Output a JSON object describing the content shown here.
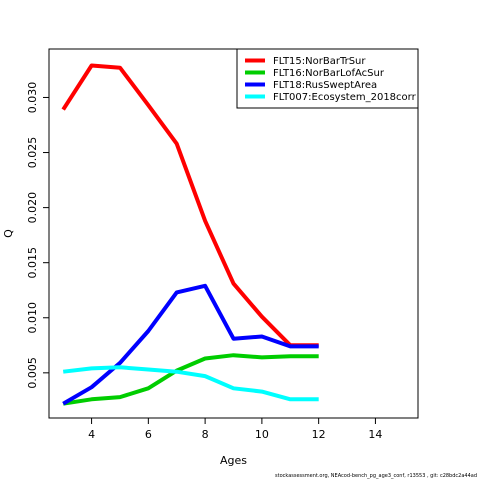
{
  "chart_data": {
    "type": "line",
    "title": "",
    "xlabel": "Ages",
    "ylabel": "Q",
    "xlim": [
      2.5,
      15.5
    ],
    "ylim": [
      0.0009,
      0.0344
    ],
    "xticks": [
      4,
      6,
      8,
      10,
      12,
      14
    ],
    "yticks": [
      0.005,
      0.01,
      0.015,
      0.02,
      0.025,
      0.03
    ],
    "ytick_labels": [
      "0.005",
      "0.010",
      "0.015",
      "0.020",
      "0.025",
      "0.030"
    ],
    "grid": false,
    "legend_position": "top-right",
    "series": [
      {
        "name": "FLT15:NorBarTrSur",
        "color": "#ff0000",
        "x": [
          3,
          4,
          5,
          6,
          7,
          8,
          9,
          10,
          11,
          12
        ],
        "y": [
          0.0289,
          0.0329,
          0.0327,
          0.0293,
          0.0258,
          0.0188,
          0.0131,
          0.0101,
          0.0075,
          0.0075
        ]
      },
      {
        "name": "FLT16:NorBarLofAcSur",
        "color": "#00cd00",
        "x": [
          3,
          4,
          5,
          6,
          7,
          8,
          9,
          10,
          11,
          12
        ],
        "y": [
          0.0022,
          0.0026,
          0.0028,
          0.0036,
          0.0052,
          0.0063,
          0.0066,
          0.0064,
          0.0065,
          0.0065
        ]
      },
      {
        "name": "FLT18:RusSweptArea",
        "color": "#0000ff",
        "x": [
          3,
          4,
          5,
          6,
          7,
          8,
          9,
          10,
          11,
          12
        ],
        "y": [
          0.0022,
          0.0037,
          0.0059,
          0.0088,
          0.0123,
          0.0129,
          0.0081,
          0.0083,
          0.0074,
          0.0074
        ]
      },
      {
        "name": "FLT007:Ecosystem_2018corr",
        "color": "#00ffff",
        "x": [
          3,
          4,
          5,
          6,
          7,
          8,
          9,
          10,
          11,
          12
        ],
        "y": [
          0.0051,
          0.0054,
          0.0055,
          0.0053,
          0.0051,
          0.0047,
          0.0036,
          0.0033,
          0.0026,
          0.0026
        ]
      }
    ]
  },
  "footer_text": "stockassessment.org,  NEAcod-bench_pg_age3_conf,  r13553 ,  git: c28bdc2a44ad"
}
